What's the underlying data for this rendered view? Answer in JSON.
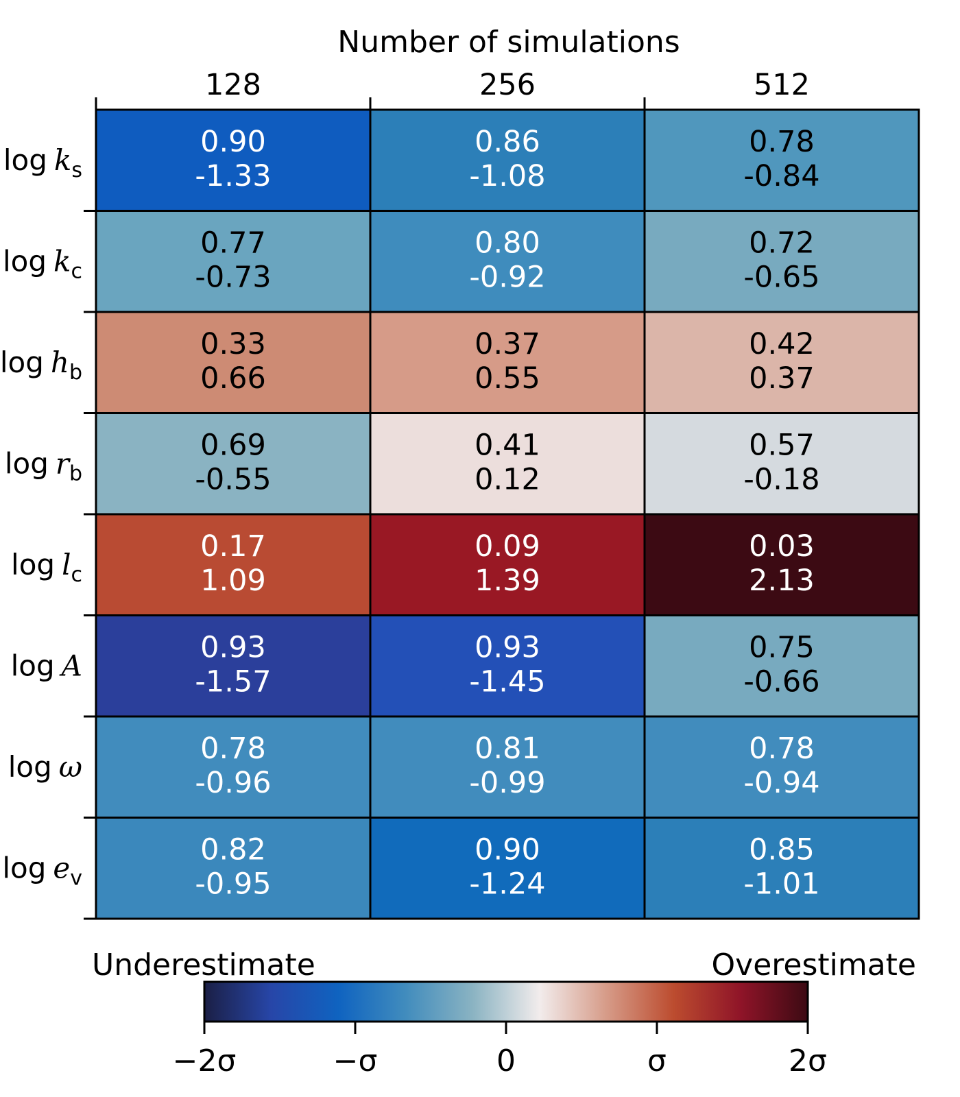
{
  "chart_data": {
    "type": "heatmap",
    "top_axis_label": "Number of simulations",
    "columns": [
      "128",
      "256",
      "512"
    ],
    "rows": [
      {
        "prefix": "log",
        "symbol": "k",
        "sub": "s"
      },
      {
        "prefix": "log",
        "symbol": "k",
        "sub": "c"
      },
      {
        "prefix": "log",
        "symbol": "h",
        "sub": "b"
      },
      {
        "prefix": "log",
        "symbol": "r",
        "sub": "b"
      },
      {
        "prefix": "log",
        "symbol": "l",
        "sub": "c"
      },
      {
        "prefix": "log",
        "symbol": "A",
        "sub": ""
      },
      {
        "prefix": "log",
        "symbol": "ω",
        "sub": ""
      },
      {
        "prefix": "log",
        "symbol": "e",
        "sub": "v"
      }
    ],
    "values_top": [
      [
        "0.90",
        "0.86",
        "0.78"
      ],
      [
        "0.77",
        "0.80",
        "0.72"
      ],
      [
        "0.33",
        "0.37",
        "0.42"
      ],
      [
        "0.69",
        "0.41",
        "0.57"
      ],
      [
        "0.17",
        "0.09",
        "0.03"
      ],
      [
        "0.93",
        "0.93",
        "0.75"
      ],
      [
        "0.78",
        "0.81",
        "0.78"
      ],
      [
        "0.82",
        "0.90",
        "0.85"
      ]
    ],
    "values_bottom": [
      [
        "-1.33",
        "-1.08",
        "-0.84"
      ],
      [
        "-0.73",
        "-0.92",
        "-0.65"
      ],
      [
        "0.66",
        "0.55",
        "0.37"
      ],
      [
        "-0.55",
        "0.12",
        "-0.18"
      ],
      [
        "1.09",
        "1.39",
        "2.13"
      ],
      [
        "-1.57",
        "-1.45",
        "-0.66"
      ],
      [
        "-0.96",
        "-0.99",
        "-0.94"
      ],
      [
        "-0.95",
        "-1.24",
        "-1.01"
      ]
    ],
    "cell_colors": [
      [
        "#0f5cbf",
        "#2c7fb8",
        "#5097bd"
      ],
      [
        "#6aa5bf",
        "#3f8cbd",
        "#78aabf"
      ],
      [
        "#cd8b74",
        "#d69b88",
        "#dbb5a9"
      ],
      [
        "#8ab3c2",
        "#ecdedc",
        "#d5dadf"
      ],
      [
        "#b94b33",
        "#991824",
        "#3c0a13"
      ],
      [
        "#2b3f9b",
        "#2350b7",
        "#78aabf"
      ],
      [
        "#418cbd",
        "#418cbd",
        "#418cbd"
      ],
      [
        "#3b88bc",
        "#116bbb",
        "#2c7fb8"
      ]
    ],
    "colorbar": {
      "left_label": "Underestimate",
      "right_label": "Overestimate",
      "range": [
        -2,
        2
      ],
      "tick_values": [
        -2,
        -1,
        0,
        1,
        2
      ],
      "tick_labels": [
        "−2σ",
        "−σ",
        "0",
        "σ",
        "2σ"
      ],
      "gradient_stops": [
        "#1b1f45",
        "#2746a8",
        "#0f63c0",
        "#418cbd",
        "#8ab3c2",
        "#f2ecec",
        "#d69b88",
        "#bc4c2f",
        "#8f1428",
        "#3c0a13"
      ]
    }
  }
}
